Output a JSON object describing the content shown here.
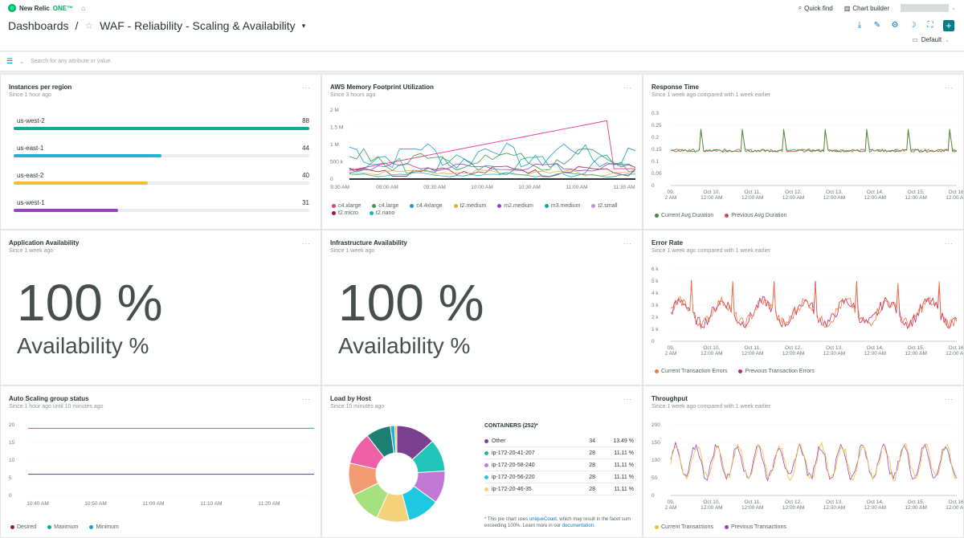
{
  "topbar": {
    "brand": "New Relic",
    "brand_one": "ONE™",
    "quick_find": "Quick find",
    "chart_builder": "Chart builder"
  },
  "header": {
    "breadcrumb_root": "Dashboards",
    "separator": "/",
    "title": "WAF - Reliability - Scaling & Availability",
    "default_label": "Default"
  },
  "filter": {
    "placeholder": "Search for any attribute or value."
  },
  "colors": {
    "teal": "#11a893",
    "blue": "#22b1d2",
    "yellow": "#f0be3b",
    "purple": "#9444c2",
    "pink": "#e8398e",
    "green": "#3c8a2f",
    "brown": "#8b6a3c"
  },
  "cards": {
    "instances": {
      "title": "Instances per region",
      "subtitle": "Since 1 hour ago",
      "rows": [
        {
          "name": "us-west-2",
          "value": "88",
          "fraction": 1.0,
          "color": "#11a893"
        },
        {
          "name": "us-east-1",
          "value": "44",
          "fraction": 0.5,
          "color": "#22b1d2"
        },
        {
          "name": "us-east-2",
          "value": "40",
          "fraction": 0.4545,
          "color": "#f0be3b"
        },
        {
          "name": "us-west-1",
          "value": "31",
          "fraction": 0.3523,
          "color": "#9444c2"
        }
      ]
    },
    "memory": {
      "title": "AWS Memory Footprint Utilization",
      "subtitle": "Since 3 hours ago",
      "y_ticks": [
        "2 M",
        "1.5 M",
        "1 M",
        "500 k",
        "0"
      ],
      "x_ticks": [
        "9:30 AM",
        "09:00 AM",
        "09:30 AM",
        "10:00 AM",
        "10:30 AM",
        "11:00 AM",
        "11:30 AM"
      ],
      "legend": [
        {
          "name": "c4.xlarge",
          "color": "#e8398e"
        },
        {
          "name": "c4.large",
          "color": "#3a9a44"
        },
        {
          "name": "c4.4xlarge",
          "color": "#1d9bd1"
        },
        {
          "name": "t2.medium",
          "color": "#f0a63b"
        },
        {
          "name": "m2.medium",
          "color": "#9444c2"
        },
        {
          "name": "m3.medium",
          "color": "#11a893"
        },
        {
          "name": "t2.small",
          "color": "#c08fd8"
        },
        {
          "name": "t2.micro",
          "color": "#8b1e3f"
        },
        {
          "name": "t2.nano",
          "color": "#22b1a2"
        }
      ]
    },
    "response": {
      "title": "Response Time",
      "subtitle": "Since 1 week ago compared with 1 week earlier",
      "y_ticks": [
        "0.3",
        "0.25",
        "0.2",
        "0.15",
        "0.1",
        "0.05",
        "0"
      ],
      "x_ticks": [
        [
          "09,",
          "2 AM"
        ],
        [
          "Oct 10,",
          "12:00 AM"
        ],
        [
          "Oct 11,",
          "12:00 AM"
        ],
        [
          "Oct 12,",
          "12:00 AM"
        ],
        [
          "Oct 13,",
          "12:00 AM"
        ],
        [
          "Oct 14,",
          "12:00 AM"
        ],
        [
          "Oct 15,",
          "12:00 AM"
        ],
        [
          "Oct 16,",
          "12:00 AM"
        ]
      ],
      "legend": [
        {
          "name": "Current Avg Duration",
          "color": "#3c8a2f"
        },
        {
          "name": "Previous Avg Duration",
          "color": "#c0504d"
        }
      ]
    },
    "app_avail": {
      "title": "Application Availability",
      "subtitle": "Since 1 week ago",
      "value": "100 %",
      "label": "Availability %"
    },
    "infra_avail": {
      "title": "Infrastructure Availability",
      "subtitle": "Since 1 week ago",
      "value": "100 %",
      "label": "Availability %"
    },
    "error_rate": {
      "title": "Error Rate",
      "subtitle": "Since 1 week ago compared with 1 week earlier",
      "y_ticks": [
        "6 k",
        "5 k",
        "4 k",
        "3 k",
        "2 k",
        "1 k",
        "0"
      ],
      "x_ticks": [
        [
          "09,",
          "2 AM"
        ],
        [
          "Oct 10,",
          "12:00 AM"
        ],
        [
          "Oct 11,",
          "12:00 AM"
        ],
        [
          "Oct 12,",
          "12:00 AM"
        ],
        [
          "Oct 13,",
          "12:00 AM"
        ],
        [
          "Oct 14,",
          "12:00 AM"
        ],
        [
          "Oct 15,",
          "12:00 AM"
        ],
        [
          "Oct 16,",
          "12:00 AM"
        ]
      ],
      "legend": [
        {
          "name": "Current Transaction Errors",
          "color": "#f07a3b"
        },
        {
          "name": "Previous Transaction Errors",
          "color": "#c0286f"
        }
      ]
    },
    "autoscaling": {
      "title": "Auto Scaling group status",
      "subtitle": "Since 1 hour ago until 10 minutes ago",
      "y_ticks": [
        "20",
        "15",
        "10",
        "5",
        "0"
      ],
      "x_ticks": [
        "10:40 AM",
        "10:50 AM",
        "11:00 AM",
        "11:10 AM",
        "11:20 AM"
      ],
      "legend": [
        {
          "name": "Desired",
          "color": "#8b1e3f"
        },
        {
          "name": "Maximum",
          "color": "#11a893"
        },
        {
          "name": "Minimum",
          "color": "#1d9bd1"
        }
      ]
    },
    "load_host": {
      "title": "Load by Host",
      "subtitle": "Since 10 minutes ago",
      "table_header": "CONTAINERS (252)*",
      "rows": [
        {
          "name": "Other",
          "count": "34",
          "pct": "13.49 %",
          "color": "#7b3f8f"
        },
        {
          "name": "ip-172-20-41-207",
          "count": "28",
          "pct": "11.11 %",
          "color": "#22b1a2"
        },
        {
          "name": "ip-172-20-58-240",
          "count": "28",
          "pct": "11.11 %",
          "color": "#c279d6"
        },
        {
          "name": "ip-172-20-56-220",
          "count": "28",
          "pct": "11.11 %",
          "color": "#1ec8e0"
        },
        {
          "name": "ip-172-20-46-35",
          "count": "28",
          "pct": "11.11 %",
          "color": "#f5d27a"
        }
      ],
      "note_pre": "* This pie chart uses",
      "note_link": "uniqueCount",
      "note_mid": ", which may result in the facet sum exceeding 100%. Learn more in our",
      "note_link2": "documentation",
      "note_end": "."
    },
    "throughput": {
      "title": "Throughput",
      "subtitle": "Since 1 week ago compared with 1 week earlier",
      "y_ticks": [
        "200",
        "150",
        "100",
        "50",
        "0"
      ],
      "x_ticks": [
        [
          "09,",
          "2 AM"
        ],
        [
          "Oct 10,",
          "12:00 AM"
        ],
        [
          "Oct 11,",
          "12:00 AM"
        ],
        [
          "Oct 12,",
          "12:00 AM"
        ],
        [
          "Oct 13,",
          "12:00 AM"
        ],
        [
          "Oct 14,",
          "12:00 AM"
        ],
        [
          "Oct 15,",
          "12:00 AM"
        ],
        [
          "Oct 16,",
          "12:00 AM"
        ]
      ],
      "legend": [
        {
          "name": "Current Transactions",
          "color": "#f0be3b"
        },
        {
          "name": "Previous Transactions",
          "color": "#9444c2"
        }
      ]
    }
  },
  "chart_data": [
    {
      "type": "bar",
      "title": "Instances per region",
      "categories": [
        "us-west-2",
        "us-east-1",
        "us-east-2",
        "us-west-1"
      ],
      "values": [
        88,
        44,
        40,
        31
      ]
    },
    {
      "type": "pie",
      "title": "Load by Host",
      "categories": [
        "Other",
        "ip-172-20-41-207",
        "ip-172-20-58-240",
        "ip-172-20-56-220",
        "ip-172-20-46-35"
      ],
      "values": [
        13.49,
        11.11,
        11.11,
        11.11,
        11.11
      ]
    }
  ],
  "pie_slices": [
    {
      "pct": 13.49,
      "color": "#7b3f8f"
    },
    {
      "pct": 11.11,
      "color": "#22c4b8"
    },
    {
      "pct": 11.11,
      "color": "#c279d6"
    },
    {
      "pct": 11.11,
      "color": "#1ec8e0"
    },
    {
      "pct": 11.11,
      "color": "#f5d27a"
    },
    {
      "pct": 11.11,
      "color": "#a6e07f"
    },
    {
      "pct": 11.11,
      "color": "#f39c74"
    },
    {
      "pct": 11.11,
      "color": "#ef5fa7"
    },
    {
      "pct": 8.5,
      "color": "#1b7f73"
    },
    {
      "pct": 1.5,
      "color": "#22b1d2"
    },
    {
      "pct": 0.73,
      "color": "#f0be3b"
    }
  ]
}
